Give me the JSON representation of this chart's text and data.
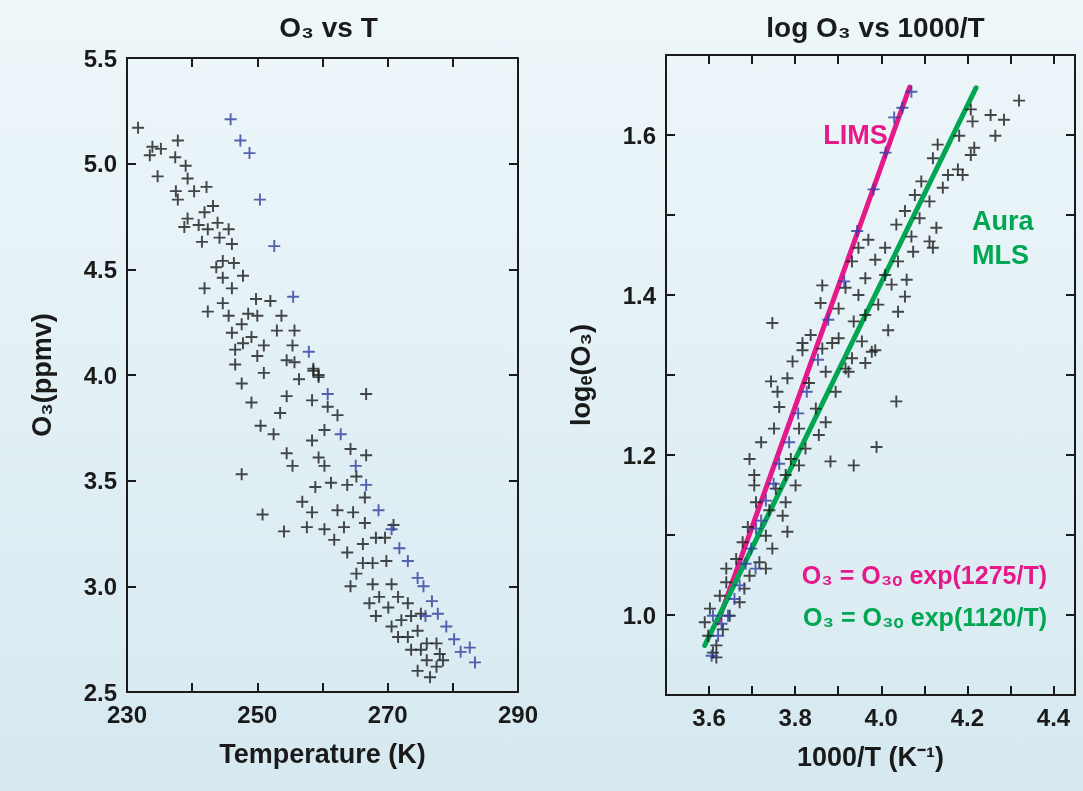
{
  "chart_data": [
    {
      "type": "scatter",
      "title": "O₃ vs T",
      "xlabel": "Temperature (K)",
      "ylabel": "O₃(ppmv)",
      "marker": "cross",
      "xlim": [
        230,
        290
      ],
      "xticks": [
        230,
        {
          "value": 240,
          "label": null
        },
        250,
        {
          "value": 260,
          "label": null
        },
        270,
        {
          "value": 280,
          "label": null
        },
        290
      ],
      "ylim": [
        2.5,
        5.5
      ],
      "yticks": [
        2.5,
        {
          "value": 3,
          "label": "3.0"
        },
        3.5,
        {
          "value": 4,
          "label": "4.0"
        },
        4.5,
        {
          "value": 5,
          "label": "5.0"
        },
        5.5
      ],
      "series": [
        {
          "color": "#1a1a1a",
          "x": [
            231.7,
            233.9,
            235.2,
            233.5,
            237.8,
            237.4,
            234.7,
            239.0,
            239.3,
            240.3,
            242.2,
            237.5,
            237.8,
            241.9,
            243.2,
            239.3,
            238.8,
            241.0,
            242.4,
            243.9,
            241.5,
            244.2,
            245.6,
            246.1,
            244.7,
            243.7,
            246.4,
            244.7,
            247.8,
            241.9,
            246.1,
            244.7,
            242.4,
            245.6,
            249.8,
            252.0,
            248.6,
            247.6,
            250.0,
            253.7,
            246.1,
            249.1,
            253.0,
            255.7,
            247.8,
            251.0,
            255.4,
            246.6,
            250.0,
            254.5,
            258.6,
            259.4,
            246.6,
            247.6,
            249.1,
            251.0,
            250.5,
            252.5,
            253.5,
            254.5,
            256.4,
            255.7,
            258.6,
            258.4,
            259.4,
            260.8,
            262.3,
            266.7,
            247.6,
            250.8,
            254.1,
            257.6,
            254.5,
            255.4,
            256.9,
            258.4,
            259.4,
            260.3,
            260.3,
            258.9,
            261.3,
            264.3,
            266.7,
            263.8,
            265.2,
            266.5,
            258.4,
            260.3,
            262.3,
            263.3,
            261.8,
            264.7,
            266.5,
            268.2,
            269.6,
            270.9,
            263.8,
            266.2,
            266.2,
            265.2,
            267.7,
            269.8,
            264.3,
            267.7,
            268.7,
            270.6,
            271.6,
            267.2,
            268.2,
            270.1,
            273.1,
            270.6,
            272.1,
            273.6,
            275.1,
            271.6,
            273.1,
            274.6,
            276.0,
            277.5,
            275.1,
            278.0,
            276.0,
            274.6,
            276.5,
            277.5,
            278.5,
            273.6
          ],
          "values": [
            5.17,
            5.08,
            5.07,
            5.04,
            5.11,
            5.03,
            4.94,
            4.99,
            4.93,
            4.87,
            4.89,
            4.87,
            4.83,
            4.77,
            4.8,
            4.74,
            4.7,
            4.71,
            4.69,
            4.72,
            4.63,
            4.65,
            4.69,
            4.62,
            4.54,
            4.51,
            4.53,
            4.46,
            4.47,
            4.41,
            4.41,
            4.34,
            4.3,
            4.28,
            4.36,
            4.35,
            4.29,
            4.24,
            4.28,
            4.28,
            4.2,
            4.18,
            4.21,
            4.21,
            4.15,
            4.14,
            4.14,
            4.12,
            4.09,
            4.07,
            4.03,
            4.0,
            4.05,
            3.96,
            3.87,
            4.01,
            3.76,
            3.72,
            3.82,
            3.9,
            3.98,
            4.06,
            4.02,
            3.88,
            3.99,
            3.85,
            3.81,
            3.91,
            3.53,
            3.34,
            3.26,
            3.28,
            3.63,
            3.57,
            3.4,
            3.69,
            3.61,
            3.74,
            3.57,
            3.47,
            3.49,
            3.65,
            3.62,
            3.48,
            3.52,
            3.42,
            3.35,
            3.27,
            3.36,
            3.28,
            3.22,
            3.35,
            3.3,
            3.23,
            3.23,
            3.29,
            3.16,
            3.2,
            3.11,
            3.06,
            3.11,
            3.12,
            3.0,
            3.01,
            2.95,
            3.01,
            2.95,
            2.92,
            2.86,
            2.9,
            2.92,
            2.81,
            2.84,
            2.86,
            2.87,
            2.76,
            2.76,
            2.79,
            2.73,
            2.73,
            2.7,
            2.68,
            2.65,
            2.6,
            2.57,
            2.62,
            2.65,
            2.7
          ]
        },
        {
          "color": "#2e3d9c",
          "x": [
            245.9,
            247.4,
            248.8,
            250.4,
            252.6,
            255.5,
            257.9,
            260.8,
            262.8,
            265.1,
            266.7,
            268.6,
            270.6,
            271.8,
            273.1,
            274.6,
            275.5,
            276.8,
            277.7,
            275.8,
            279.0,
            280.2,
            281.2,
            282.6,
            283.4
          ],
          "values": [
            5.21,
            5.11,
            5.05,
            4.83,
            4.61,
            4.37,
            4.11,
            3.91,
            3.72,
            3.57,
            3.48,
            3.36,
            3.27,
            3.18,
            3.12,
            3.04,
            3.0,
            2.93,
            2.87,
            2.86,
            2.81,
            2.75,
            2.69,
            2.71,
            2.64
          ]
        }
      ]
    },
    {
      "type": "scatter",
      "title": "log O₃ vs 1000/T",
      "xlabel": "1000/T (K⁻¹)",
      "ylabel": "logₑ(O₃)",
      "marker": "cross",
      "line_style": "solid",
      "xlim": [
        3.5,
        4.45
      ],
      "xticks": [
        {
          "value": 3.5,
          "label": null
        },
        3.6,
        {
          "value": 3.7,
          "label": null
        },
        3.8,
        {
          "value": 3.9,
          "label": null
        },
        {
          "value": 4,
          "label": "4.0"
        },
        {
          "value": 4.1,
          "label": null
        },
        4.2,
        {
          "value": 4.3,
          "label": null
        },
        4.4
      ],
      "ylim": [
        0.9,
        1.7
      ],
      "yticks": [
        {
          "value": 0.9,
          "label": null
        },
        {
          "value": 1,
          "label": "1.0"
        },
        {
          "value": 1.1,
          "label": null
        },
        1.2,
        {
          "value": 1.3,
          "label": null
        },
        1.4,
        {
          "value": 1.5,
          "label": null
        },
        1.6,
        {
          "value": 1.7,
          "label": null
        }
      ],
      "annotations": [
        "O₃ = O₃ₒ exp(1275/T)",
        "O₃ = O₃ₒ exp(1120/T)"
      ],
      "series": [
        {
          "color": "#1a1a1a",
          "x": [
            4.32,
            4.254,
            4.285,
            4.212,
            4.265,
            4.208,
            4.181,
            4.216,
            4.208,
            4.131,
            4.12,
            4.178,
            4.189,
            4.155,
            4.143,
            4.093,
            4.078,
            4.112,
            4.055,
            4.089,
            4.035,
            4.128,
            4.07,
            4.112,
            4.12,
            4.074,
            3.97,
            4.009,
            3.947,
            3.986,
            3.932,
            4.039,
            3.963,
            4.009,
            4.059,
            4.024,
            3.863,
            3.917,
            3.947,
            4.055,
            4.039,
            3.993,
            3.859,
            3.901,
            3.963,
            3.936,
            4.016,
            3.747,
            3.836,
            3.901,
            3.955,
            3.986,
            3.817,
            3.863,
            3.932,
            3.794,
            3.817,
            3.917,
            3.871,
            3.963,
            3.886,
            3.978,
            3.924,
            3.744,
            3.782,
            3.832,
            3.894,
            4.035,
            3.759,
            3.763,
            3.848,
            3.871,
            3.751,
            3.809,
            3.855,
            3.721,
            3.824,
            3.989,
            3.79,
            3.694,
            3.809,
            3.882,
            3.936,
            3.705,
            3.778,
            3.705,
            3.755,
            3.801,
            3.709,
            3.778,
            3.74,
            3.771,
            3.782,
            3.69,
            3.732,
            3.678,
            3.747,
            3.663,
            3.717,
            3.732,
            3.64,
            3.694,
            3.64,
            3.682,
            3.625,
            3.671,
            3.602,
            3.648,
            3.59,
            3.632,
            3.598,
            3.617,
            3.609,
            3.617
          ],
          "values": [
            1.643,
            1.625,
            1.619,
            1.617,
            1.599,
            1.632,
            1.599,
            1.584,
            1.575,
            1.588,
            1.571,
            1.557,
            1.55,
            1.55,
            1.534,
            1.542,
            1.525,
            1.517,
            1.505,
            1.496,
            1.488,
            1.484,
            1.473,
            1.467,
            1.459,
            1.454,
            1.469,
            1.459,
            1.459,
            1.444,
            1.442,
            1.442,
            1.421,
            1.425,
            1.419,
            1.413,
            1.412,
            1.409,
            1.4,
            1.398,
            1.379,
            1.388,
            1.39,
            1.383,
            1.375,
            1.367,
            1.356,
            1.365,
            1.35,
            1.346,
            1.342,
            1.331,
            1.34,
            1.333,
            1.321,
            1.317,
            1.331,
            1.308,
            1.304,
            1.315,
            1.34,
            1.329,
            1.304,
            1.292,
            1.296,
            1.29,
            1.279,
            1.267,
            1.279,
            1.26,
            1.258,
            1.241,
            1.233,
            1.233,
            1.225,
            1.216,
            1.208,
            1.21,
            1.195,
            1.195,
            1.187,
            1.192,
            1.187,
            1.175,
            1.175,
            1.162,
            1.158,
            1.162,
            1.141,
            1.141,
            1.131,
            1.124,
            1.104,
            1.11,
            1.099,
            1.091,
            1.083,
            1.07,
            1.066,
            1.058,
            1.058,
            1.049,
            1.041,
            1.033,
            1.024,
            1.016,
            1.008,
            0.999,
            0.991,
            0.982,
            0.974,
            0.962,
            0.953,
            0.947
          ]
        },
        {
          "color": "#2e3d9c",
          "x": [
            4.07,
            4.049,
            4.03,
            4.01,
            3.982,
            3.944,
            3.914,
            3.877,
            3.853,
            3.827,
            3.807,
            3.786,
            3.763,
            3.75,
            3.732,
            3.721,
            3.709,
            3.698,
            3.685,
            3.708,
            3.671,
            3.659,
            3.644,
            3.629,
            3.609,
            3.621,
            3.606
          ],
          "values": [
            1.654,
            1.634,
            1.622,
            1.578,
            1.532,
            1.48,
            1.417,
            1.369,
            1.319,
            1.279,
            1.252,
            1.216,
            1.189,
            1.164,
            1.143,
            1.118,
            1.108,
            1.083,
            1.064,
            1.058,
            1.037,
            1.02,
            0.999,
            0.989,
            0.999,
            0.974,
            0.949
          ]
        },
        {
          "type": "line",
          "marker": "none",
          "name": "LIMS",
          "color": "#e6198a",
          "x": [
            3.62,
            4.066
          ],
          "values": [
            0.99,
            1.66
          ]
        },
        {
          "type": "line",
          "marker": "none",
          "name": "Aura MLS",
          "color": "#00a651",
          "x": [
            3.59,
            4.22
          ],
          "values": [
            0.962,
            1.659
          ]
        }
      ]
    }
  ]
}
